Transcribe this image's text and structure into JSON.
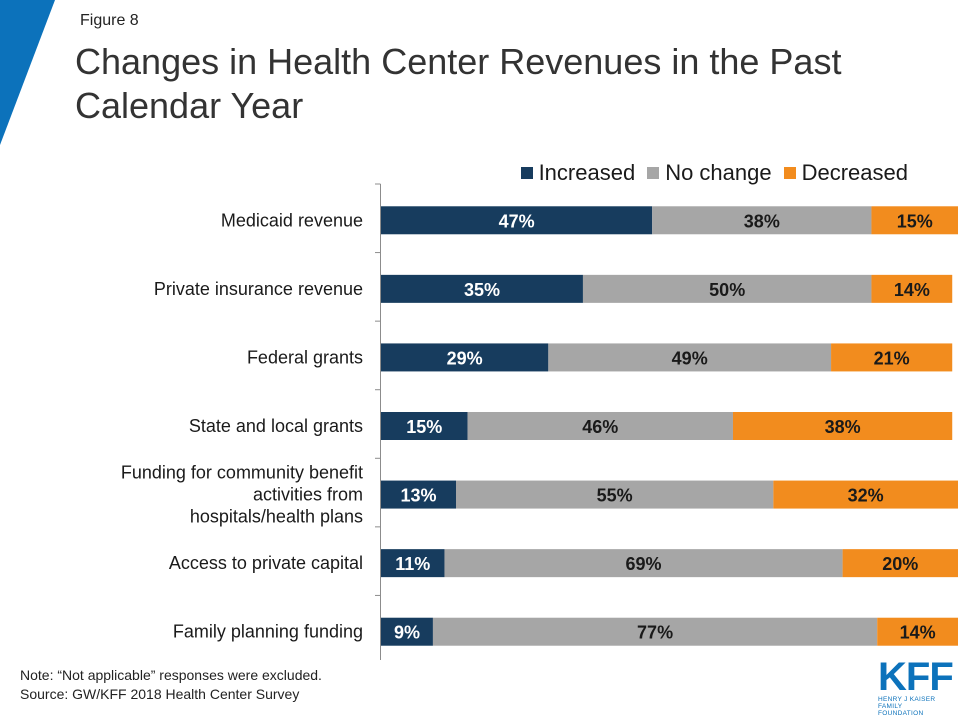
{
  "figure_label": "Figure 8",
  "title": "Changes in Health Center Revenues in the Past Calendar Year",
  "colors": {
    "accent": "#0c72bb",
    "increased": "#173c5e",
    "no_change": "#a6a6a6",
    "decreased": "#f28c1e"
  },
  "chart_data": {
    "type": "bar",
    "orientation": "horizontal",
    "stacked": true,
    "categories": [
      "Medicaid revenue",
      "Private insurance revenue",
      "Federal grants",
      "State and local grants",
      "Funding for community benefit activities from hospitals/health plans",
      "Access to private capital",
      "Family planning funding"
    ],
    "series": [
      {
        "name": "Increased",
        "values": [
          47,
          35,
          29,
          15,
          13,
          11,
          9
        ],
        "labels": [
          "47%",
          "35%",
          "29%",
          "15%",
          "13%",
          "11%",
          "9%"
        ]
      },
      {
        "name": "No change",
        "values": [
          38,
          50,
          49,
          46,
          55,
          69,
          77
        ],
        "labels": [
          "38%",
          "50%",
          "49%",
          "46%",
          "55%",
          "69%",
          "77%"
        ]
      },
      {
        "name": "Decreased",
        "values": [
          15,
          14,
          21,
          38,
          32,
          20,
          14
        ],
        "labels": [
          "15%",
          "14%",
          "21%",
          "38%",
          "32%",
          "20%",
          "14%"
        ]
      }
    ],
    "legend_position": "top-right",
    "xlim": [
      0,
      100
    ],
    "grid": false
  },
  "note": "Note: “Not applicable” responses were excluded.",
  "source": "Source: GW/KFF 2018 Health Center Survey",
  "logo": {
    "mark": "KFF",
    "line1": "HENRY J KAISER",
    "line2": "FAMILY FOUNDATION"
  }
}
